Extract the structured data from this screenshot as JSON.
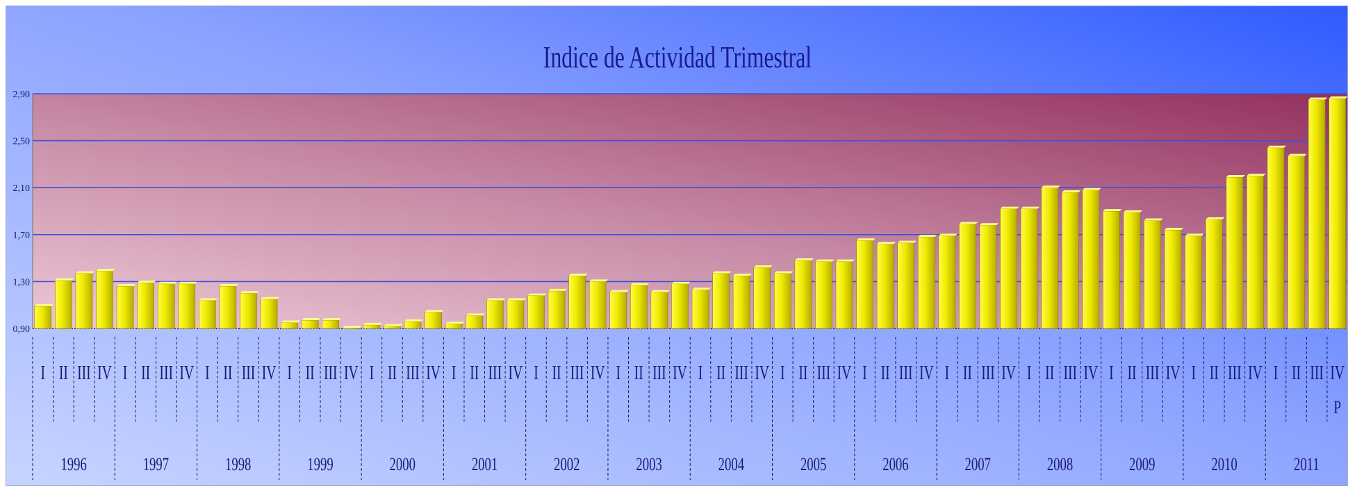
{
  "chart_data": {
    "type": "bar",
    "title": "Indice de Actividad Trimestral",
    "xlabel": "",
    "ylabel": "",
    "ylim": [
      0.9,
      2.9
    ],
    "yticks": [
      "0,90",
      "1,30",
      "1,70",
      "2,10",
      "2,50",
      "2,90"
    ],
    "ytick_values": [
      0.9,
      1.3,
      1.7,
      2.1,
      2.5,
      2.9
    ],
    "grid": true,
    "legend": "none",
    "quarter_labels": [
      "I",
      "II",
      "III",
      "IV"
    ],
    "years": [
      "1996",
      "1997",
      "1998",
      "1999",
      "2000",
      "2001",
      "2002",
      "2003",
      "2004",
      "2005",
      "2006",
      "2007",
      "2008",
      "2009",
      "2010",
      "2011"
    ],
    "annotations": [
      {
        "category_index": 63,
        "text": "P"
      }
    ],
    "values": [
      1.09,
      1.31,
      1.37,
      1.39,
      1.26,
      1.29,
      1.28,
      1.28,
      1.14,
      1.26,
      1.2,
      1.15,
      0.95,
      0.97,
      0.97,
      0.9,
      0.93,
      0.92,
      0.96,
      1.04,
      0.94,
      1.01,
      1.14,
      1.14,
      1.18,
      1.22,
      1.35,
      1.3,
      1.21,
      1.27,
      1.21,
      1.28,
      1.23,
      1.37,
      1.35,
      1.42,
      1.37,
      1.48,
      1.47,
      1.47,
      1.65,
      1.62,
      1.63,
      1.68,
      1.69,
      1.79,
      1.78,
      1.92,
      1.92,
      2.1,
      2.06,
      2.08,
      1.9,
      1.89,
      1.82,
      1.74,
      1.69,
      1.83,
      2.19,
      2.2,
      2.44,
      2.37,
      2.85,
      2.86
    ]
  },
  "colors": {
    "frame_top_left": "#b6c7ff",
    "frame_right": "#2f5bff",
    "plot_left": "#e7bccf",
    "plot_right": "#9b3565",
    "grid": "#3a52d8",
    "bar_face": "#f2ee00",
    "bar_dark": "#b9b000",
    "text": "#1a1a7a"
  }
}
